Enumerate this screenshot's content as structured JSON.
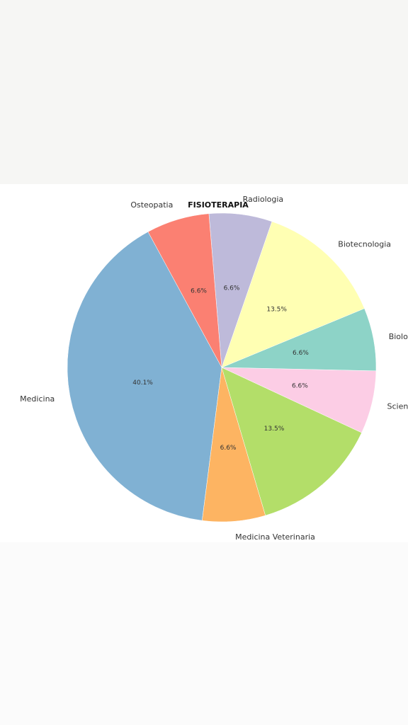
{
  "chart_data": {
    "type": "pie",
    "title": "FISIOTERAPIA",
    "start_angle_deg": 118.5,
    "direction": "counterclockwise",
    "slices": [
      {
        "label": "Medicina",
        "value": 40.1,
        "pct_label": "40.1%",
        "color": "#80b1d3"
      },
      {
        "label": "Medicina Veterinaria",
        "value": 6.6,
        "pct_label": "6.6%",
        "color": "#fdb462"
      },
      {
        "label": "",
        "value": 13.5,
        "pct_label": "13.5%",
        "color": "#b3de69"
      },
      {
        "label": "Scienze Motorie",
        "value": 6.6,
        "pct_label": "6.6%",
        "color": "#fccde5"
      },
      {
        "label": "Biologia",
        "value": 6.6,
        "pct_label": "6.6%",
        "color": "#8dd3c7"
      },
      {
        "label": "Biotecnologia",
        "value": 13.5,
        "pct_label": "13.5%",
        "color": "#ffffb3"
      },
      {
        "label": "Radiologia",
        "value": 6.6,
        "pct_label": "6.6%",
        "color": "#bebada"
      },
      {
        "label": "Osteopatia",
        "value": 6.6,
        "pct_label": "6.6%",
        "color": "#fb8072"
      }
    ]
  }
}
